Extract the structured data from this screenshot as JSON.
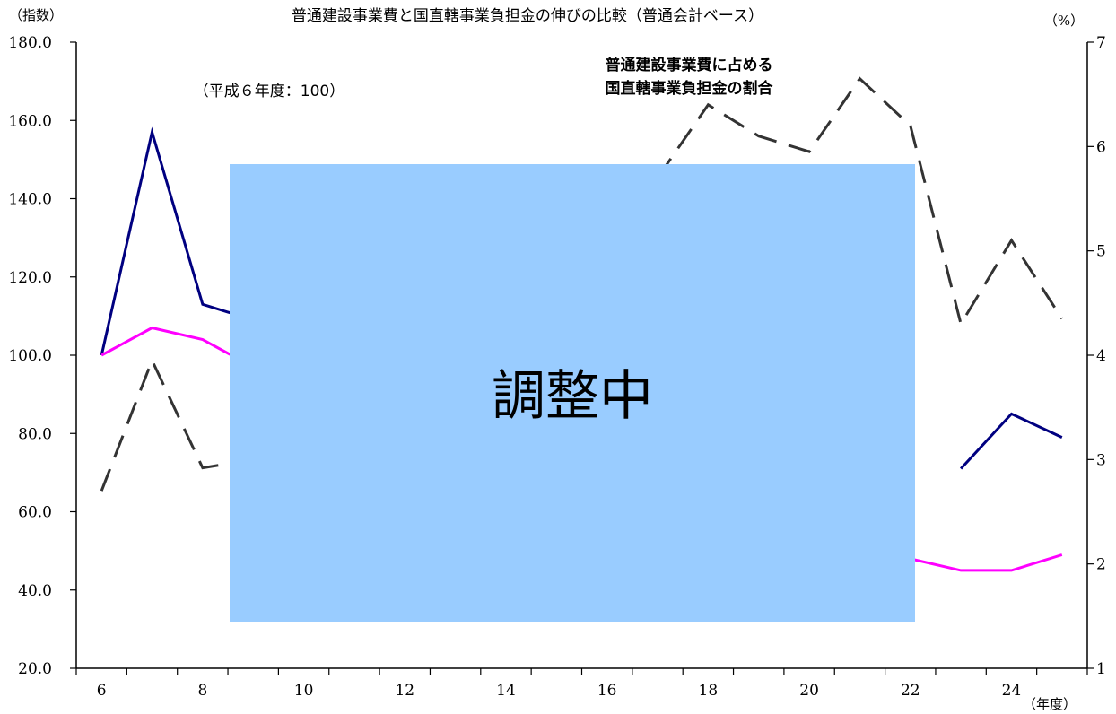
{
  "chart_data": {
    "type": "line",
    "title": "普通建設事業費と国直轄事業負担金の伸びの比較（普通会計ベース）",
    "y_left_unit": "（指数）",
    "y_right_unit": "（%）",
    "x_unit": "（年度）",
    "base_note": "（平成６年度：100）",
    "ratio_annotation": [
      "普通建設事業費に占める",
      "国直轄事業負担金の割合"
    ],
    "overlay_text": "調整中",
    "x": [
      6,
      7,
      8,
      9,
      10,
      11,
      12,
      13,
      14,
      15,
      16,
      17,
      18,
      19,
      20,
      21,
      22,
      23,
      24,
      25
    ],
    "x_tick_labels": [
      "6",
      "8",
      "10",
      "12",
      "14",
      "16",
      "18",
      "20",
      "22",
      "24"
    ],
    "x_tick_values": [
      6,
      8,
      10,
      12,
      14,
      16,
      18,
      20,
      22,
      24
    ],
    "ylim_left": [
      20,
      180
    ],
    "ylim_right": [
      1,
      7
    ],
    "y_left_ticks": [
      "20.0",
      "40.0",
      "60.0",
      "80.0",
      "100.0",
      "120.0",
      "140.0",
      "160.0",
      "180.0"
    ],
    "y_left_tick_values": [
      20,
      40,
      60,
      80,
      100,
      120,
      140,
      160,
      180
    ],
    "y_right_ticks": [
      "1",
      "2",
      "3",
      "4",
      "5",
      "6",
      "7"
    ],
    "y_right_tick_values": [
      1,
      2,
      3,
      4,
      5,
      6,
      7
    ],
    "series": [
      {
        "axis": "left",
        "color": "#000080",
        "dash": "solid",
        "values": [
          100.0,
          157.0,
          113.0,
          109.0,
          null,
          null,
          null,
          null,
          null,
          null,
          null,
          null,
          null,
          null,
          null,
          null,
          null,
          71.0,
          85.0,
          79.0
        ]
      },
      {
        "axis": "left",
        "color": "#ff00ff",
        "dash": "solid",
        "values": [
          100.0,
          107.0,
          104.0,
          97.0,
          null,
          null,
          null,
          null,
          null,
          null,
          null,
          null,
          null,
          null,
          null,
          null,
          48.0,
          45.0,
          45.0,
          49.0
        ]
      },
      {
        "axis": "right",
        "color": "#333333",
        "dash": "dashed",
        "values": [
          2.7,
          3.95,
          2.92,
          3.0,
          null,
          null,
          null,
          null,
          null,
          null,
          null,
          5.7,
          6.4,
          6.1,
          5.95,
          6.65,
          6.2,
          4.3,
          5.1,
          4.35
        ]
      }
    ],
    "colors": {
      "overlay": "#99ccff"
    },
    "grid": false
  }
}
